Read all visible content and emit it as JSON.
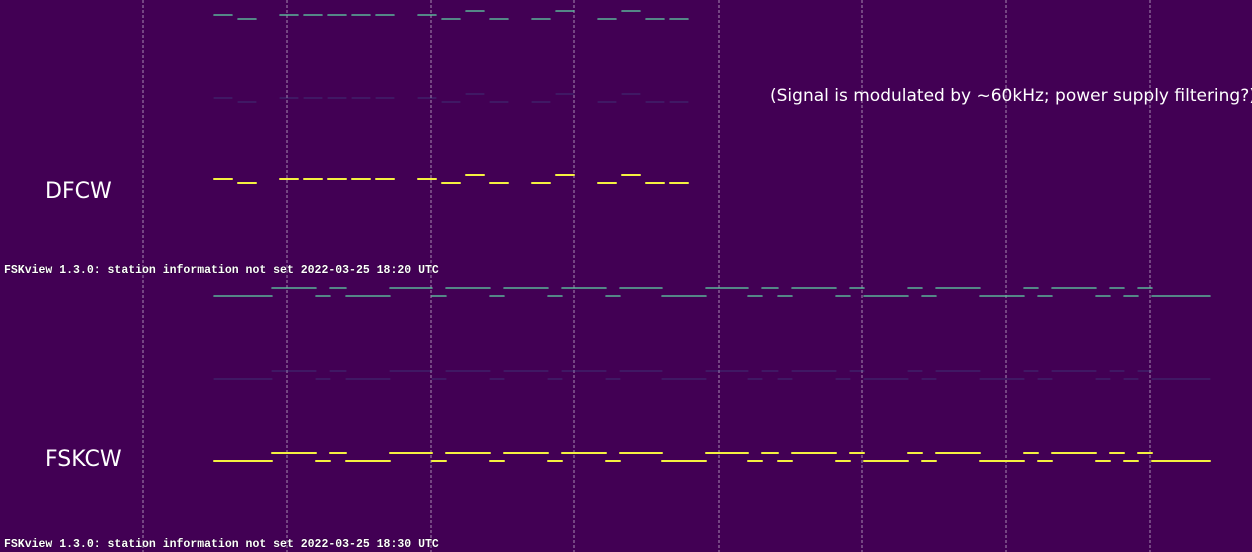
{
  "labels": {
    "top_mode": "DFCW",
    "bottom_mode": "FSKCW"
  },
  "annotation": "(Signal is modulated by ~60kHz; power supply filtering?)",
  "status_lines": [
    "FSKview 1.3.0: station information not set 2022-03-25 18:20 UTC",
    "FSKview 1.3.0: station information not set 2022-03-25 18:30 UTC"
  ],
  "colors": {
    "background": "#420054",
    "grid": "#c7b8d0",
    "trace_strong": "#f4f040",
    "trace_mid": "#5ec8a0",
    "trace_weak": "#3d6a9a",
    "text": "#ffffff"
  }
}
